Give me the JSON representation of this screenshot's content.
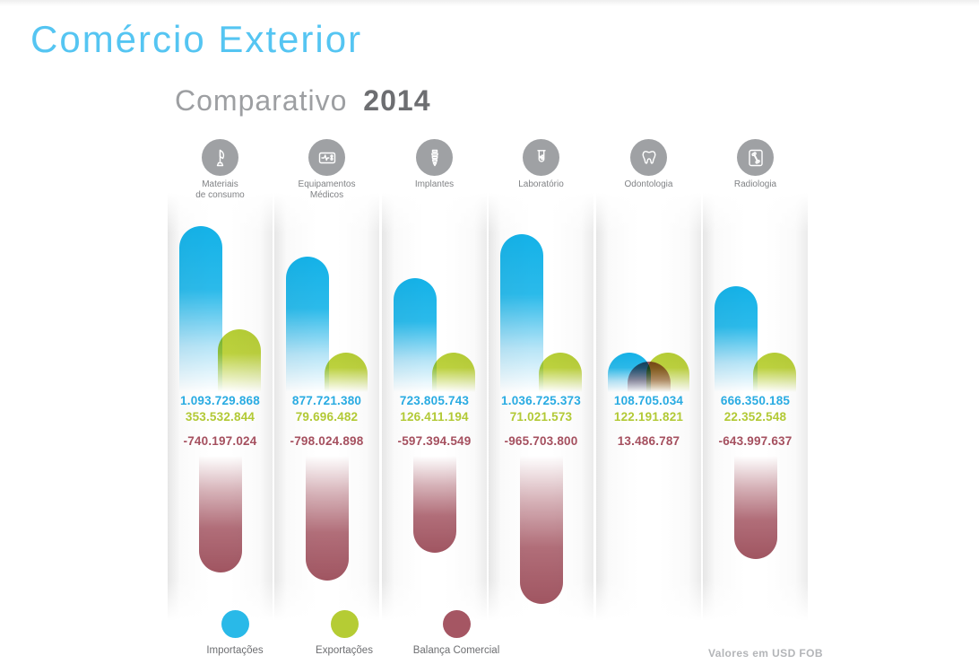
{
  "title": "Comércio Exterior",
  "subtitle": {
    "label": "Comparativo",
    "year": "2014"
  },
  "footnote": "Valores em USD FOB",
  "legend": [
    {
      "label": "Importações",
      "color": "#29b9e8"
    },
    {
      "label": "Exportações",
      "color": "#b5cc34"
    },
    {
      "label": "Balança Comercial",
      "color": "#a55663"
    }
  ],
  "chart_data": {
    "type": "bar",
    "title": "Comparativo 2014",
    "unit": "USD FOB",
    "legend_position": "bottom",
    "grid": false,
    "categories": [
      "Materiais de consumo",
      "Equipamentos Médicos",
      "Implantes",
      "Laboratório",
      "Odontologia",
      "Radiologia"
    ],
    "series": [
      {
        "name": "Importações",
        "color": "#29b9e8",
        "values": [
          1093729868,
          877721380,
          723805743,
          1036725373,
          108705034,
          666350185
        ]
      },
      {
        "name": "Exportações",
        "color": "#b5cc34",
        "values": [
          353532844,
          79696482,
          126411194,
          71021573,
          122191821,
          22352548
        ]
      },
      {
        "name": "Balança Comercial",
        "color": "#a55663",
        "values": [
          -740197024,
          -798024898,
          -597394549,
          -965703800,
          13486787,
          -643997637
        ]
      }
    ]
  },
  "groups": [
    {
      "label": "Materiais\nde consumo",
      "icon": "iv-drip-stand-icon",
      "imports": "1.093.729.868",
      "exports": "353.532.844",
      "balance": "-740.197.024"
    },
    {
      "label": "Equipamentos\nMédicos",
      "icon": "patient-monitor-icon",
      "imports": "877.721.380",
      "exports": "79.696.482",
      "balance": "-798.024.898"
    },
    {
      "label": "Implantes",
      "icon": "implant-screw-icon",
      "imports": "723.805.743",
      "exports": "126.411.194",
      "balance": "-597.394.549"
    },
    {
      "label": "Laboratório",
      "icon": "test-tube-icon",
      "imports": "1.036.725.373",
      "exports": "71.021.573",
      "balance": "-965.703.800"
    },
    {
      "label": "Odontologia",
      "icon": "tooth-icon",
      "imports": "108.705.034",
      "exports": "122.191.821",
      "balance": "13.486.787"
    },
    {
      "label": "Radiologia",
      "icon": "xray-bone-icon",
      "imports": "666.350.185",
      "exports": "22.352.548",
      "balance": "-643.997.637"
    }
  ]
}
